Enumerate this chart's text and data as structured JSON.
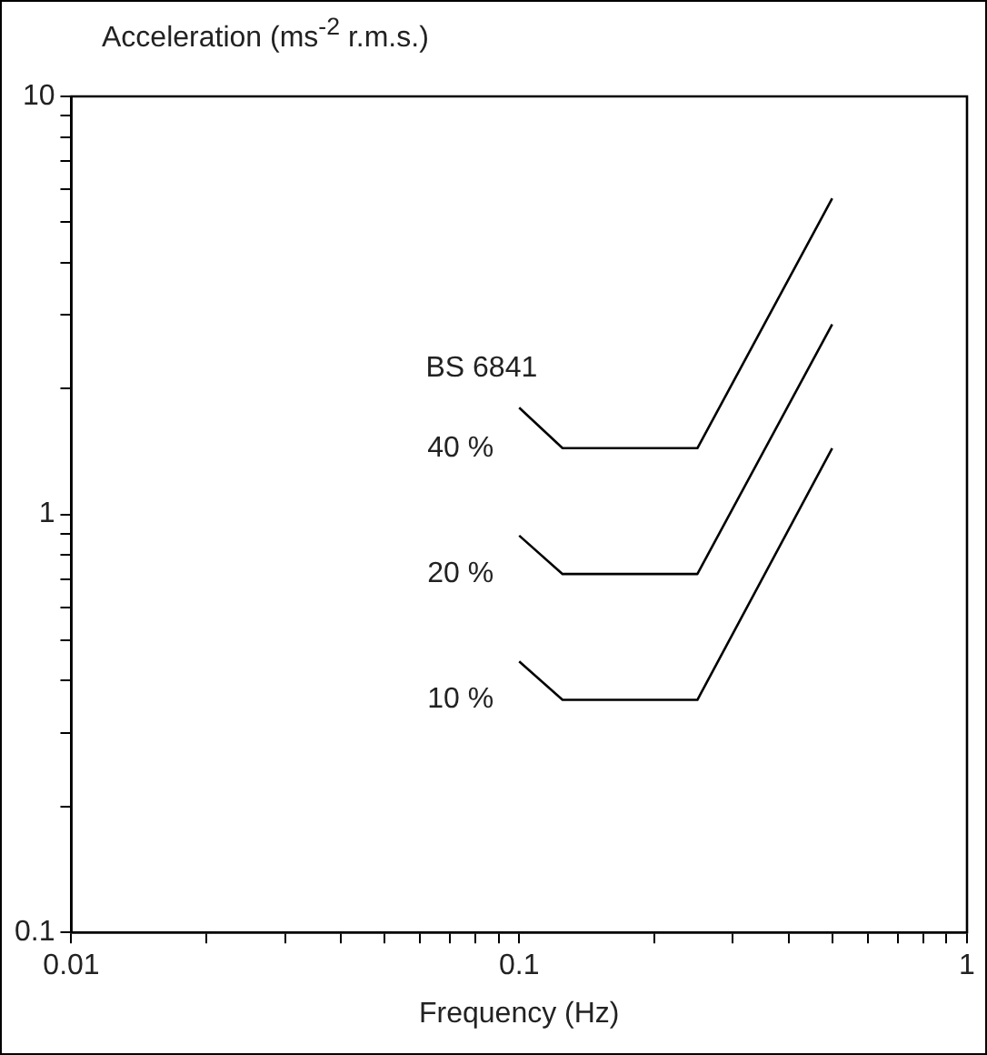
{
  "chart_data": {
    "type": "line",
    "xlabel": "Frequency (Hz)",
    "ylabel": "Acceleration (ms$^{-2}$ r.m.s.)",
    "annotations": [
      "BS 6841"
    ],
    "log": "xy",
    "grid": false,
    "legend": false,
    "marker": "none",
    "line_style": "solid",
    "xlim": [
      0.01,
      1
    ],
    "ylim": [
      0.1,
      10
    ],
    "xticks": [
      0.01,
      {
        "value": 0.02,
        "label": null
      },
      {
        "value": 0.03,
        "label": null
      },
      {
        "value": 0.04,
        "label": null
      },
      {
        "value": 0.05,
        "label": null
      },
      {
        "value": 0.06,
        "label": null
      },
      {
        "value": 0.07,
        "label": null
      },
      {
        "value": 0.08,
        "label": null
      },
      {
        "value": 0.09,
        "label": null
      },
      0.1,
      {
        "value": 0.2,
        "label": null
      },
      {
        "value": 0.3,
        "label": null
      },
      {
        "value": 0.4,
        "label": null
      },
      {
        "value": 0.5,
        "label": null
      },
      {
        "value": 0.6,
        "label": null
      },
      {
        "value": 0.7,
        "label": null
      },
      {
        "value": 0.8,
        "label": null
      },
      {
        "value": 0.9,
        "label": null
      },
      1
    ],
    "yticks": [
      0.1,
      {
        "value": 0.2,
        "label": null
      },
      {
        "value": 0.3,
        "label": null
      },
      {
        "value": 0.4,
        "label": null
      },
      {
        "value": 0.5,
        "label": null
      },
      {
        "value": 0.6,
        "label": null
      },
      {
        "value": 0.7,
        "label": null
      },
      {
        "value": 0.8,
        "label": null
      },
      {
        "value": 0.9,
        "label": null
      },
      1,
      {
        "value": 2,
        "label": null
      },
      {
        "value": 3,
        "label": null
      },
      {
        "value": 4,
        "label": null
      },
      {
        "value": 5,
        "label": null
      },
      {
        "value": 6,
        "label": null
      },
      {
        "value": 7,
        "label": null
      },
      {
        "value": 8,
        "label": null
      },
      {
        "value": 9,
        "label": null
      },
      10
    ],
    "x": [
      0.1,
      0.125,
      0.25,
      0.5
    ],
    "series": [
      {
        "name": "40 %",
        "color": "#000000",
        "values": [
          1.8,
          1.44,
          1.44,
          5.7
        ]
      },
      {
        "name": "20 %",
        "color": "#000000",
        "values": [
          0.89,
          0.72,
          0.72,
          2.85
        ]
      },
      {
        "name": "10 %",
        "color": "#000000",
        "values": [
          0.445,
          0.36,
          0.36,
          1.44
        ]
      }
    ]
  }
}
